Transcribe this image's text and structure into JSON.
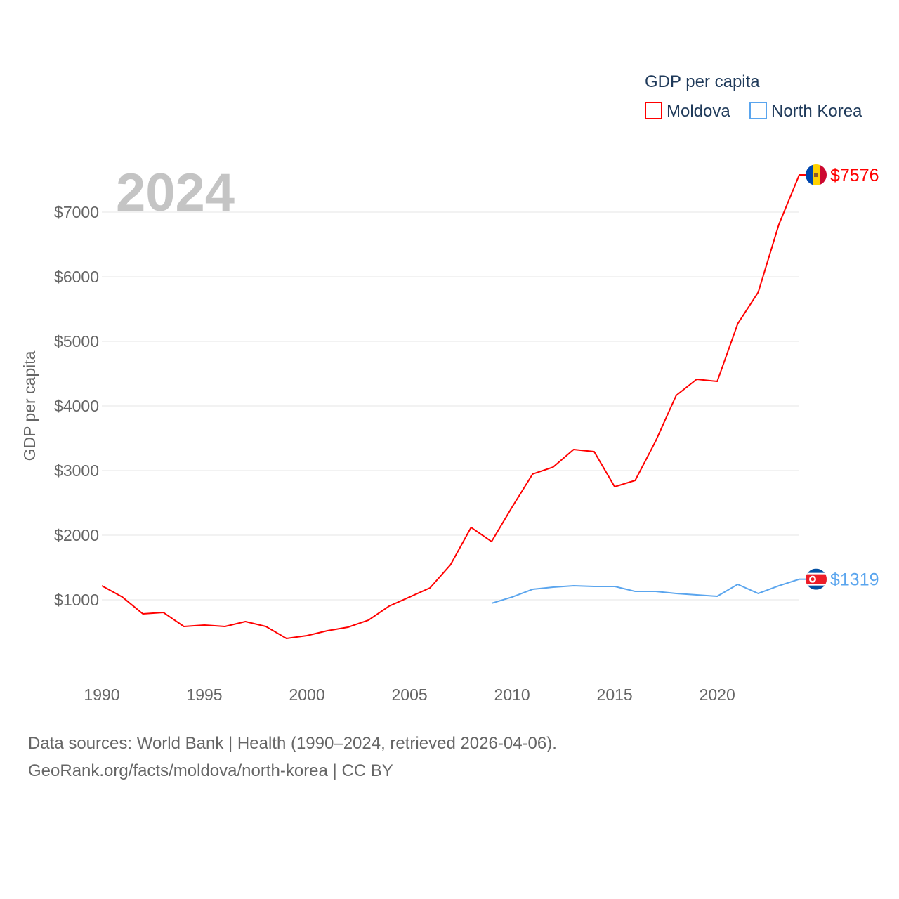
{
  "chart_data": {
    "type": "line",
    "title": "GDP per capita",
    "ylabel": "GDP per capita",
    "xlabel": "",
    "year_label": "2024",
    "xlim": [
      1990,
      2024
    ],
    "ylim": [
      0,
      7800
    ],
    "x_ticks": [
      "1990",
      "1995",
      "2000",
      "2005",
      "2010",
      "2015",
      "2020"
    ],
    "y_ticks": [
      {
        "value": 1000,
        "label": "$1000"
      },
      {
        "value": 2000,
        "label": "$2000"
      },
      {
        "value": 3000,
        "label": "$3000"
      },
      {
        "value": 4000,
        "label": "$4000"
      },
      {
        "value": 5000,
        "label": "$5000"
      },
      {
        "value": 6000,
        "label": "$6000"
      },
      {
        "value": 7000,
        "label": "$7000"
      }
    ],
    "grid": true,
    "legend_position": "top-right",
    "series": [
      {
        "name": "Moldova",
        "color": "#ff0000",
        "end_label": "$7576",
        "x": [
          1990,
          1991,
          1992,
          1993,
          1994,
          1995,
          1996,
          1997,
          1998,
          1999,
          2000,
          2001,
          2002,
          2003,
          2004,
          2005,
          2006,
          2007,
          2008,
          2009,
          2010,
          2011,
          2012,
          2013,
          2014,
          2015,
          2016,
          2017,
          2018,
          2019,
          2020,
          2021,
          2022,
          2023,
          2024
        ],
        "values": [
          1217,
          1043,
          783,
          804,
          587,
          609,
          587,
          663,
          587,
          402,
          446,
          522,
          576,
          685,
          902,
          1043,
          1185,
          1543,
          2120,
          1902,
          2435,
          2946,
          3054,
          3326,
          3293,
          2750,
          2848,
          3457,
          4163,
          4413,
          4380,
          5272,
          5761,
          6804,
          7576
        ]
      },
      {
        "name": "North Korea",
        "color": "#5aa5ee",
        "end_label": "$1319",
        "x": [
          2009,
          2010,
          2011,
          2012,
          2013,
          2014,
          2015,
          2016,
          2017,
          2018,
          2019,
          2020,
          2021,
          2022,
          2023,
          2024
        ],
        "values": [
          946,
          1043,
          1163,
          1196,
          1217,
          1207,
          1207,
          1130,
          1130,
          1098,
          1076,
          1054,
          1239,
          1098,
          1217,
          1319
        ]
      }
    ]
  },
  "footer": {
    "line1": "Data sources: World Bank | Health (1990–2024, retrieved 2026-04-06).",
    "line2": "GeoRank.org/facts/moldova/north-korea | CC BY"
  }
}
